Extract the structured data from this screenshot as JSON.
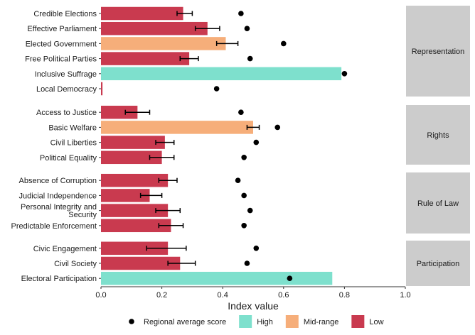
{
  "chart_data": {
    "type": "bar",
    "orientation": "horizontal",
    "xlabel": "Index value",
    "xlim": [
      0,
      1
    ],
    "x_ticks": [
      "0.0",
      "0.2",
      "0.4",
      "0.6",
      "0.8",
      "1.0"
    ],
    "x_tick_values": [
      0,
      0.2,
      0.4,
      0.6,
      0.8,
      1.0
    ],
    "grid": false,
    "legend_position": "bottom",
    "legend": [
      {
        "key": "avg",
        "label": "Regional average score",
        "shape": "point"
      },
      {
        "key": "High",
        "label": "High",
        "color": "#7ee0cd"
      },
      {
        "key": "Mid",
        "label": "Mid-range",
        "color": "#f6ae7a"
      },
      {
        "key": "Low",
        "label": "Low",
        "color": "#c93a4f"
      }
    ],
    "colors": {
      "High": "#7ee0cd",
      "Mid": "#f6ae7a",
      "Low": "#c93a4f",
      "strip": "#cccccc",
      "point": "#000000"
    },
    "facets": [
      {
        "name": "Representation",
        "items": [
          {
            "label": "Credible Elections",
            "value": 0.27,
            "err_low": 0.25,
            "err_high": 0.3,
            "avg": 0.46,
            "category": "Low"
          },
          {
            "label": "Effective Parliament",
            "value": 0.35,
            "err_low": 0.31,
            "err_high": 0.39,
            "avg": 0.48,
            "category": "Low"
          },
          {
            "label": "Elected Government",
            "value": 0.41,
            "err_low": 0.38,
            "err_high": 0.45,
            "avg": 0.6,
            "category": "Mid"
          },
          {
            "label": "Free Political Parties",
            "value": 0.29,
            "err_low": 0.26,
            "err_high": 0.32,
            "avg": 0.49,
            "category": "Low"
          },
          {
            "label": "Inclusive Suffrage",
            "value": 0.79,
            "avg": 0.8,
            "category": "High"
          },
          {
            "label": "Local Democracy",
            "value": 0.005,
            "avg": 0.38,
            "category": "Low"
          }
        ]
      },
      {
        "name": "Rights",
        "items": [
          {
            "label": "Access to Justice",
            "value": 0.12,
            "err_low": 0.08,
            "err_high": 0.16,
            "avg": 0.46,
            "category": "Low"
          },
          {
            "label": "Basic Welfare",
            "value": 0.5,
            "err_low": 0.48,
            "err_high": 0.52,
            "avg": 0.58,
            "category": "Mid"
          },
          {
            "label": "Civil Liberties",
            "value": 0.21,
            "err_low": 0.18,
            "err_high": 0.24,
            "avg": 0.51,
            "category": "Low"
          },
          {
            "label": "Political Equality",
            "value": 0.2,
            "err_low": 0.16,
            "err_high": 0.24,
            "avg": 0.47,
            "category": "Low"
          }
        ]
      },
      {
        "name": "Rule of Law",
        "items": [
          {
            "label": "Absence of Corruption",
            "value": 0.22,
            "err_low": 0.19,
            "err_high": 0.25,
            "avg": 0.45,
            "category": "Low"
          },
          {
            "label": "Judicial Independence",
            "value": 0.16,
            "err_low": 0.13,
            "err_high": 0.2,
            "avg": 0.47,
            "category": "Low"
          },
          {
            "label": "Personal Integrity and\nSecurity",
            "value": 0.22,
            "err_low": 0.18,
            "err_high": 0.26,
            "avg": 0.49,
            "category": "Low"
          },
          {
            "label": "Predictable Enforcement",
            "value": 0.23,
            "err_low": 0.19,
            "err_high": 0.27,
            "avg": 0.47,
            "category": "Low"
          }
        ]
      },
      {
        "name": "Participation",
        "items": [
          {
            "label": "Civic Engagement",
            "value": 0.22,
            "err_low": 0.15,
            "err_high": 0.28,
            "avg": 0.51,
            "category": "Low"
          },
          {
            "label": "Civil Society",
            "value": 0.26,
            "err_low": 0.22,
            "err_high": 0.31,
            "avg": 0.48,
            "category": "Low"
          },
          {
            "label": "Electoral Participation",
            "value": 0.76,
            "avg": 0.62,
            "category": "High"
          }
        ]
      }
    ]
  }
}
